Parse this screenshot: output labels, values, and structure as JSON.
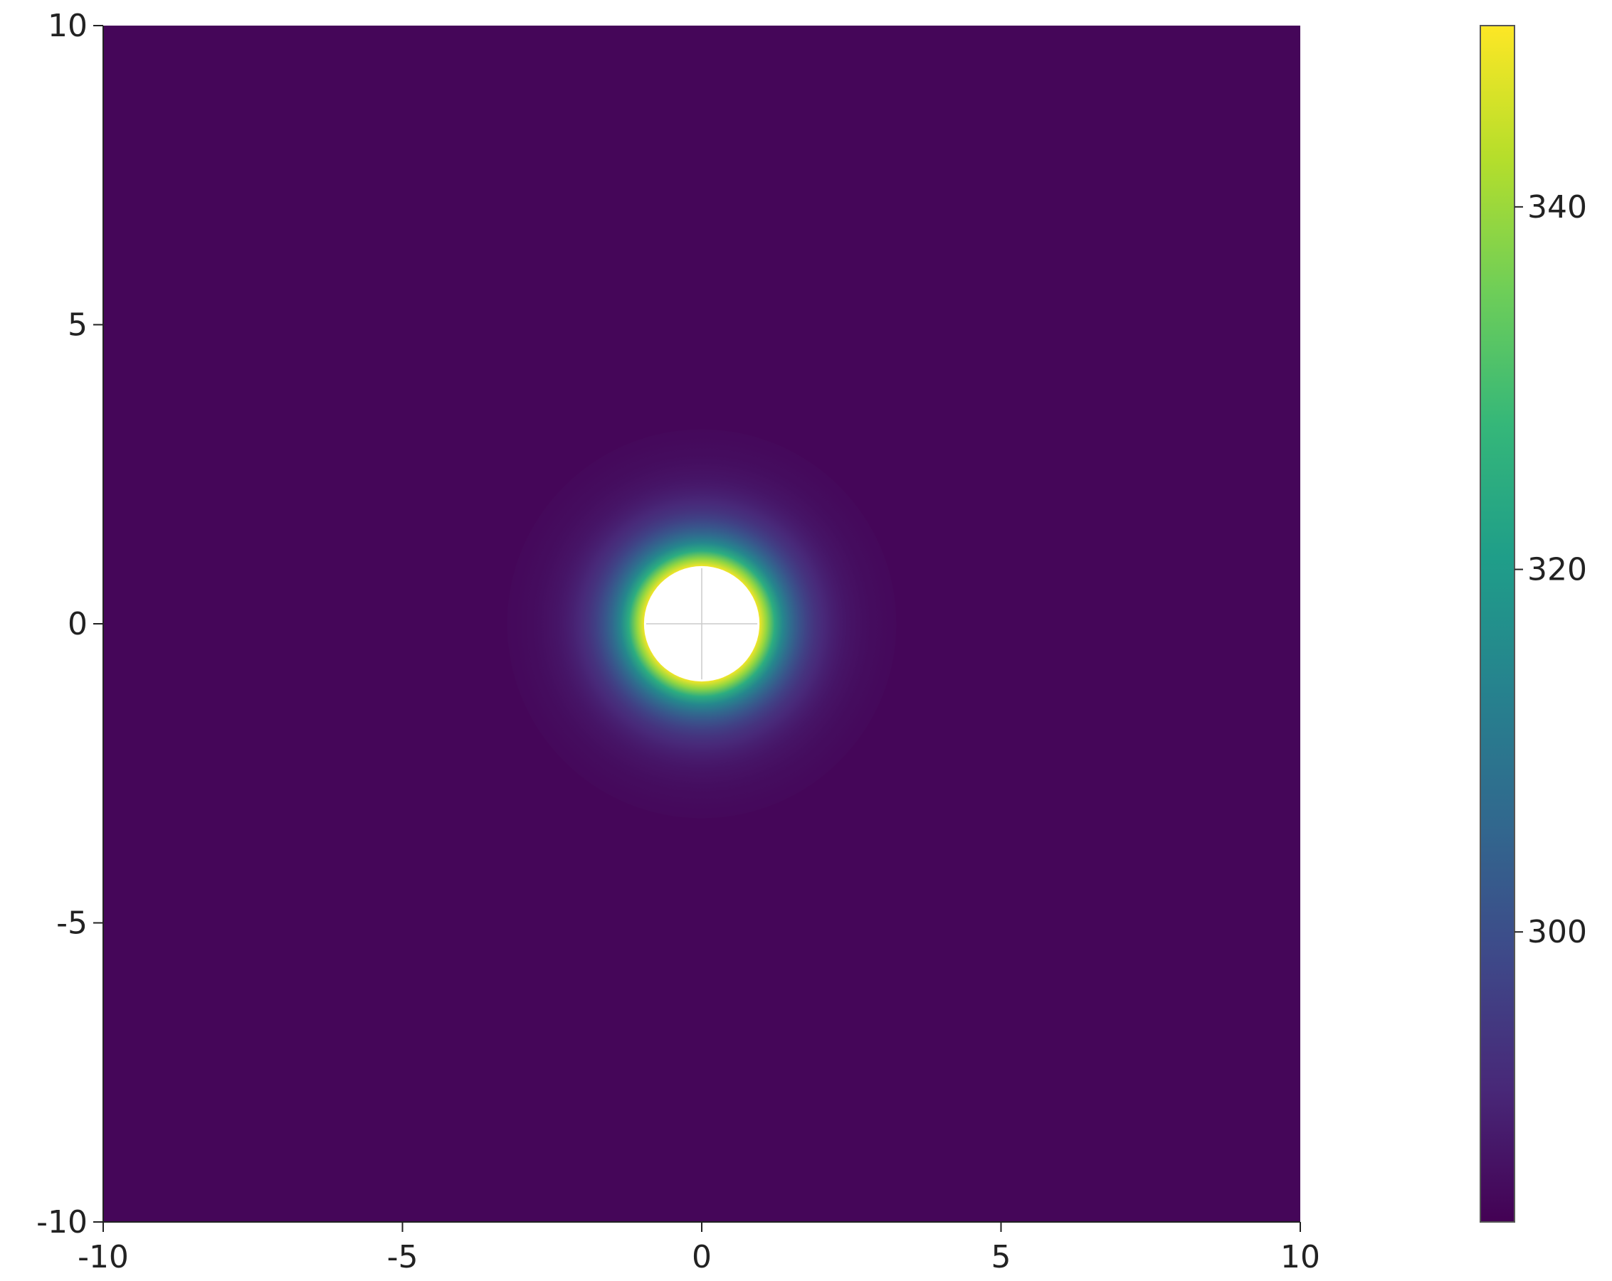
{
  "chart_data": {
    "type": "heatmap",
    "title": "",
    "xlabel": "",
    "ylabel": "",
    "xlim": [
      -10,
      10
    ],
    "ylim": [
      -10,
      10
    ],
    "x_ticks": [
      -10,
      -5,
      0,
      5,
      10
    ],
    "y_ticks": [
      -10,
      -5,
      0,
      5,
      10
    ],
    "x_tick_labels": [
      "-10",
      "-5",
      "0",
      "5",
      "10"
    ],
    "y_tick_labels": [
      "-10",
      "-5",
      "0",
      "5",
      "10"
    ],
    "grid": false,
    "colormap": "viridis",
    "colorbar": {
      "range": [
        284,
        350
      ],
      "ticks": [
        300,
        320,
        340
      ],
      "tick_labels": [
        "300",
        "320",
        "340"
      ],
      "placement": "right"
    },
    "field": {
      "description_free": true,
      "background_value": 285,
      "center": [
        0,
        0
      ],
      "hole_radius": 1.0,
      "peak_value": 350,
      "decay_scale": 0.45
    },
    "colors": {
      "viridis_stops": [
        "#440154",
        "#482878",
        "#3e4989",
        "#31688e",
        "#26828e",
        "#1f9e89",
        "#35b779",
        "#6ece58",
        "#b5de2b",
        "#fde725"
      ],
      "hole": "#ffffff",
      "axis": "#222222"
    }
  }
}
